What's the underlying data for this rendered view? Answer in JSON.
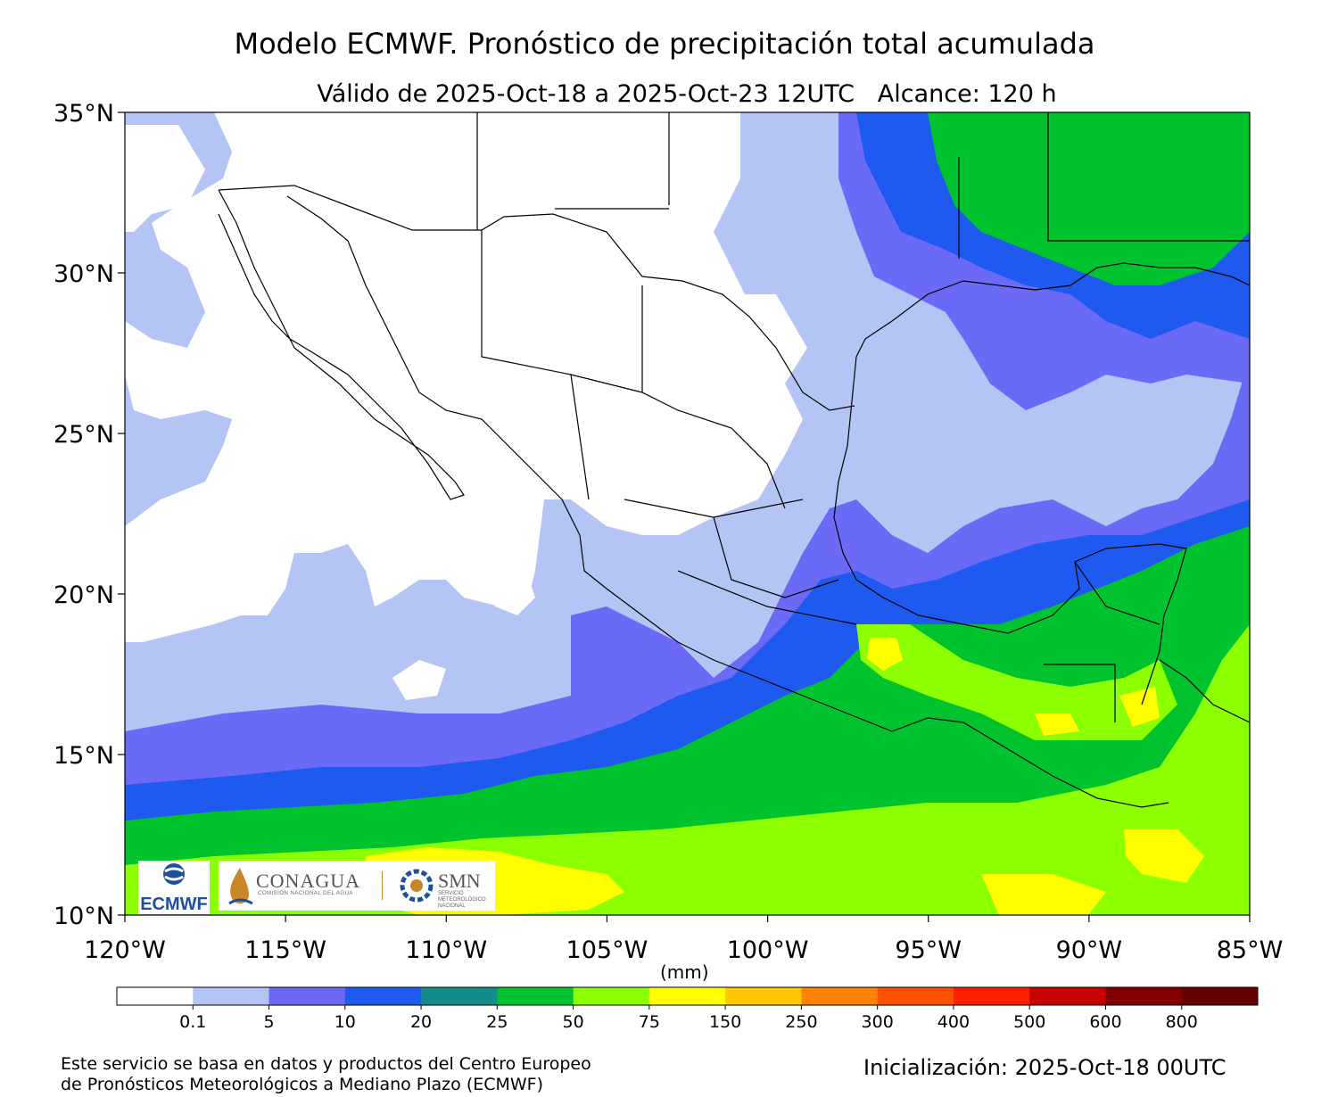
{
  "header": {
    "title": "Modelo ECMWF. Pronóstico de precipitación total acumulada",
    "subtitle": "Válido de 2025-Oct-18 a 2025-Oct-23 12UTC   Alcance: 120 h"
  },
  "map": {
    "lon_range": [
      -120,
      -85
    ],
    "lat_range": [
      10,
      35
    ],
    "lon_ticks": [
      "120°W",
      "115°W",
      "110°W",
      "105°W",
      "100°W",
      "95°W",
      "90°W",
      "85°W"
    ],
    "lat_ticks": [
      "35°N",
      "30°N",
      "25°N",
      "20°N",
      "15°N",
      "10°N"
    ],
    "ocean_color": "#b4c4f4",
    "land_color": "#ffffff"
  },
  "colorbar": {
    "unit": "(mm)",
    "labels": [
      "0.1",
      "5",
      "10",
      "20",
      "25",
      "50",
      "75",
      "150",
      "250",
      "300",
      "400",
      "500",
      "600",
      "800"
    ],
    "colors": [
      "#ffffff",
      "#b4c4f4",
      "#6a6af6",
      "#1e5af0",
      "#148c8c",
      "#00c32d",
      "#8cff00",
      "#ffff00",
      "#ffc800",
      "#ff8200",
      "#ff5000",
      "#ff1e00",
      "#c80000",
      "#820000",
      "#640000"
    ]
  },
  "logos": {
    "ecmwf": "ECMWF",
    "conagua": "CONAGUA",
    "conagua_sub": "COMISIÓN NACIONAL DEL AGUA",
    "smn": "SMN",
    "smn_sub": "SERVICIO METEOROLÓGICO NACIONAL"
  },
  "footer": {
    "credit_line1": "Este servicio se basa en datos y productos del Centro Europeo",
    "credit_line2": "de Pronósticos Meteorológicos a Mediano Plazo (ECMWF)",
    "init": "Inicialización: 2025-Oct-18 00UTC"
  }
}
